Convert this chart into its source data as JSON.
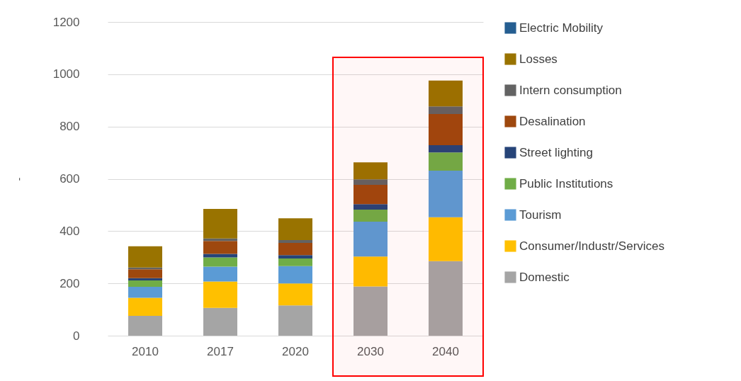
{
  "chart_data": {
    "type": "bar",
    "stacked": true,
    "ylabel": "-",
    "categories": [
      "2010",
      "2017",
      "2020",
      "2030",
      "2040"
    ],
    "series": [
      {
        "name": "Domestic",
        "color": "#a5a5a5",
        "values": [
          76,
          106,
          116,
          188,
          285
        ]
      },
      {
        "name": "Consumer/Industr/Services",
        "color": "#ffc000",
        "values": [
          69,
          101,
          84,
          115,
          168
        ]
      },
      {
        "name": "Tourism",
        "color": "#5b9bd5",
        "values": [
          42,
          57,
          66,
          133,
          178
        ]
      },
      {
        "name": "Public Institutions",
        "color": "#70ad47",
        "values": [
          24,
          35,
          29,
          46,
          70
        ]
      },
      {
        "name": "Street lighting",
        "color": "#264478",
        "values": [
          9,
          14,
          13,
          21,
          28
        ]
      },
      {
        "name": "Desalination",
        "color": "#9e480e",
        "values": [
          34,
          49,
          47,
          74,
          119
        ]
      },
      {
        "name": "Intern consumption",
        "color": "#636363",
        "values": [
          7,
          10,
          11,
          21,
          29
        ]
      },
      {
        "name": "Losses",
        "color": "#997300",
        "values": [
          81,
          113,
          83,
          65,
          99
        ]
      },
      {
        "name": "Electric Mobility",
        "color": "#255e91",
        "values": [
          0,
          0,
          0,
          0,
          0
        ]
      }
    ],
    "ylim": [
      0,
      1200
    ],
    "yticks": [
      0,
      200,
      400,
      600,
      800,
      1000,
      1200
    ],
    "grid": "y",
    "legend": "right",
    "bands": [
      {
        "axis": "x",
        "from": "2030",
        "to": "2040",
        "color": "#ff0000"
      }
    ]
  }
}
